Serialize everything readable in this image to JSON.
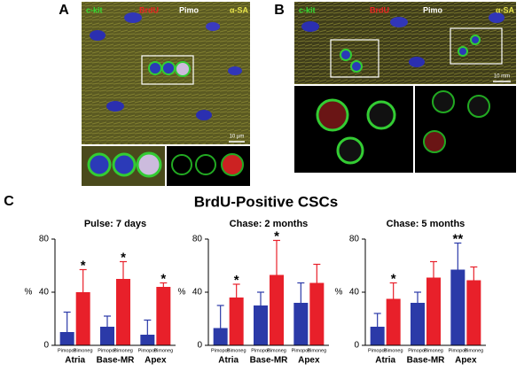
{
  "panels": [
    {
      "label": "A",
      "channels": [
        "c-kit",
        "BrdU",
        "Pimo",
        "α-SA"
      ],
      "scale": "10 µm"
    },
    {
      "label": "B",
      "channels": [
        "c-kit",
        "BrdU",
        "Pimo",
        "α-SA"
      ],
      "scale": "10 mm"
    }
  ],
  "figure": {
    "label": "C",
    "title": "BrdU-Positive CSCs"
  },
  "chart_data": [
    {
      "type": "bar",
      "title": "Pulse: 7 days",
      "ylabel": "%",
      "categories": [
        "Atria",
        "Base-MR",
        "Apex"
      ],
      "ylim": [
        0,
        80
      ],
      "yticks": [
        0,
        40,
        80
      ],
      "series": [
        {
          "name": "Pimopos",
          "color": "#2b3aa8",
          "values": [
            10,
            14,
            8
          ],
          "errors": [
            15,
            8,
            11
          ],
          "value_annotations": [
            null,
            null,
            null
          ]
        },
        {
          "name": "Pimoneg",
          "color": "#e8202a",
          "values": [
            40,
            50,
            44
          ],
          "errors": [
            17,
            13,
            3
          ],
          "value_annotations": [
            "*",
            "*",
            "*"
          ]
        }
      ]
    },
    {
      "type": "bar",
      "title": "Chase: 2 months",
      "ylabel": "%",
      "categories": [
        "Atria",
        "Base-MR",
        "Apex"
      ],
      "ylim": [
        0,
        80
      ],
      "yticks": [
        0,
        40,
        80
      ],
      "series": [
        {
          "name": "Pimopos",
          "color": "#2b3aa8",
          "values": [
            13,
            30,
            32
          ],
          "errors": [
            17,
            10,
            15
          ],
          "value_annotations": [
            null,
            null,
            null
          ]
        },
        {
          "name": "Pimoneg",
          "color": "#e8202a",
          "values": [
            36,
            53,
            47
          ],
          "errors": [
            10,
            26,
            14
          ],
          "value_annotations": [
            "*",
            "*",
            null
          ]
        }
      ]
    },
    {
      "type": "bar",
      "title": "Chase: 5 months",
      "ylabel": "%",
      "categories": [
        "Atria",
        "Base-MR",
        "Apex"
      ],
      "ylim": [
        0,
        80
      ],
      "yticks": [
        0,
        40,
        80
      ],
      "series": [
        {
          "name": "Pimopos",
          "color": "#2b3aa8",
          "values": [
            14,
            32,
            57
          ],
          "errors": [
            10,
            8,
            20
          ],
          "value_annotations": [
            null,
            null,
            "**"
          ]
        },
        {
          "name": "Pimoneg",
          "color": "#e8202a",
          "values": [
            35,
            51,
            49
          ],
          "errors": [
            12,
            12,
            10
          ],
          "value_annotations": [
            "*",
            null,
            null
          ]
        }
      ]
    }
  ]
}
